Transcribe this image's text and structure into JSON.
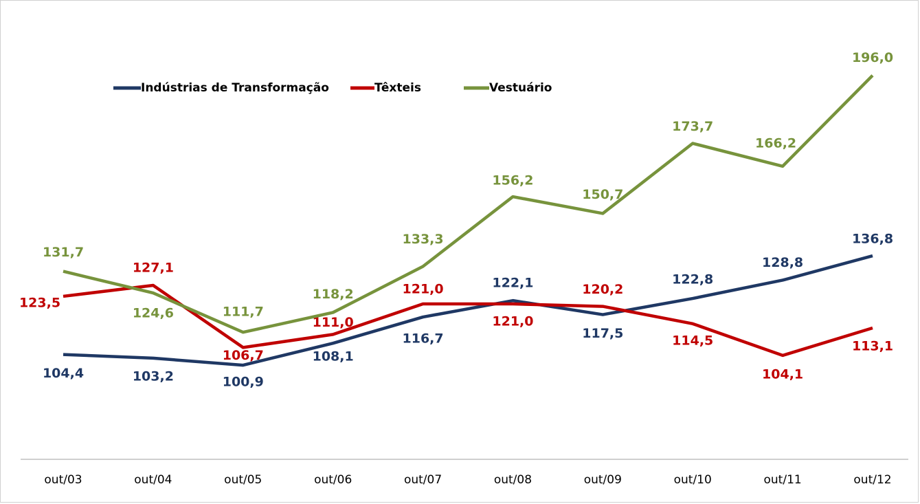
{
  "chart_data": {
    "type": "line",
    "categories": [
      "out/03",
      "out/04",
      "out/05",
      "out/06",
      "out/07",
      "out/08",
      "out/09",
      "out/10",
      "out/11",
      "out/12"
    ],
    "series": [
      {
        "name": "Indústrias de Transformação",
        "color": "#1f3864",
        "values": [
          104.4,
          103.2,
          100.9,
          108.1,
          116.7,
          122.1,
          117.5,
          122.8,
          128.8,
          136.8
        ],
        "value_labels": [
          "104,4",
          "103,2",
          "100,9",
          "108,1",
          "116,7",
          "122,1",
          "117,5",
          "122,8",
          "128,8",
          "136,8"
        ]
      },
      {
        "name": "Têxteis",
        "color": "#c00000",
        "values": [
          123.5,
          127.1,
          106.7,
          111.0,
          121.0,
          121.0,
          120.2,
          114.5,
          104.1,
          113.1
        ],
        "value_labels": [
          "123,5",
          "127,1",
          "106,7",
          "111,0",
          "121,0",
          "121,0",
          "120,2",
          "114,5",
          "104,1",
          "113,1"
        ]
      },
      {
        "name": "Vestuário",
        "color": "#77933c",
        "values": [
          131.7,
          124.6,
          111.7,
          118.2,
          133.3,
          156.2,
          150.7,
          173.7,
          166.2,
          196.0
        ],
        "value_labels": [
          "131,7",
          "124,6",
          "111,7",
          "118,2",
          "133,3",
          "156,2",
          "150,7",
          "173,7",
          "166,2",
          "196,0"
        ]
      }
    ],
    "ylim": [
      70,
      200
    ],
    "legend": "top"
  }
}
